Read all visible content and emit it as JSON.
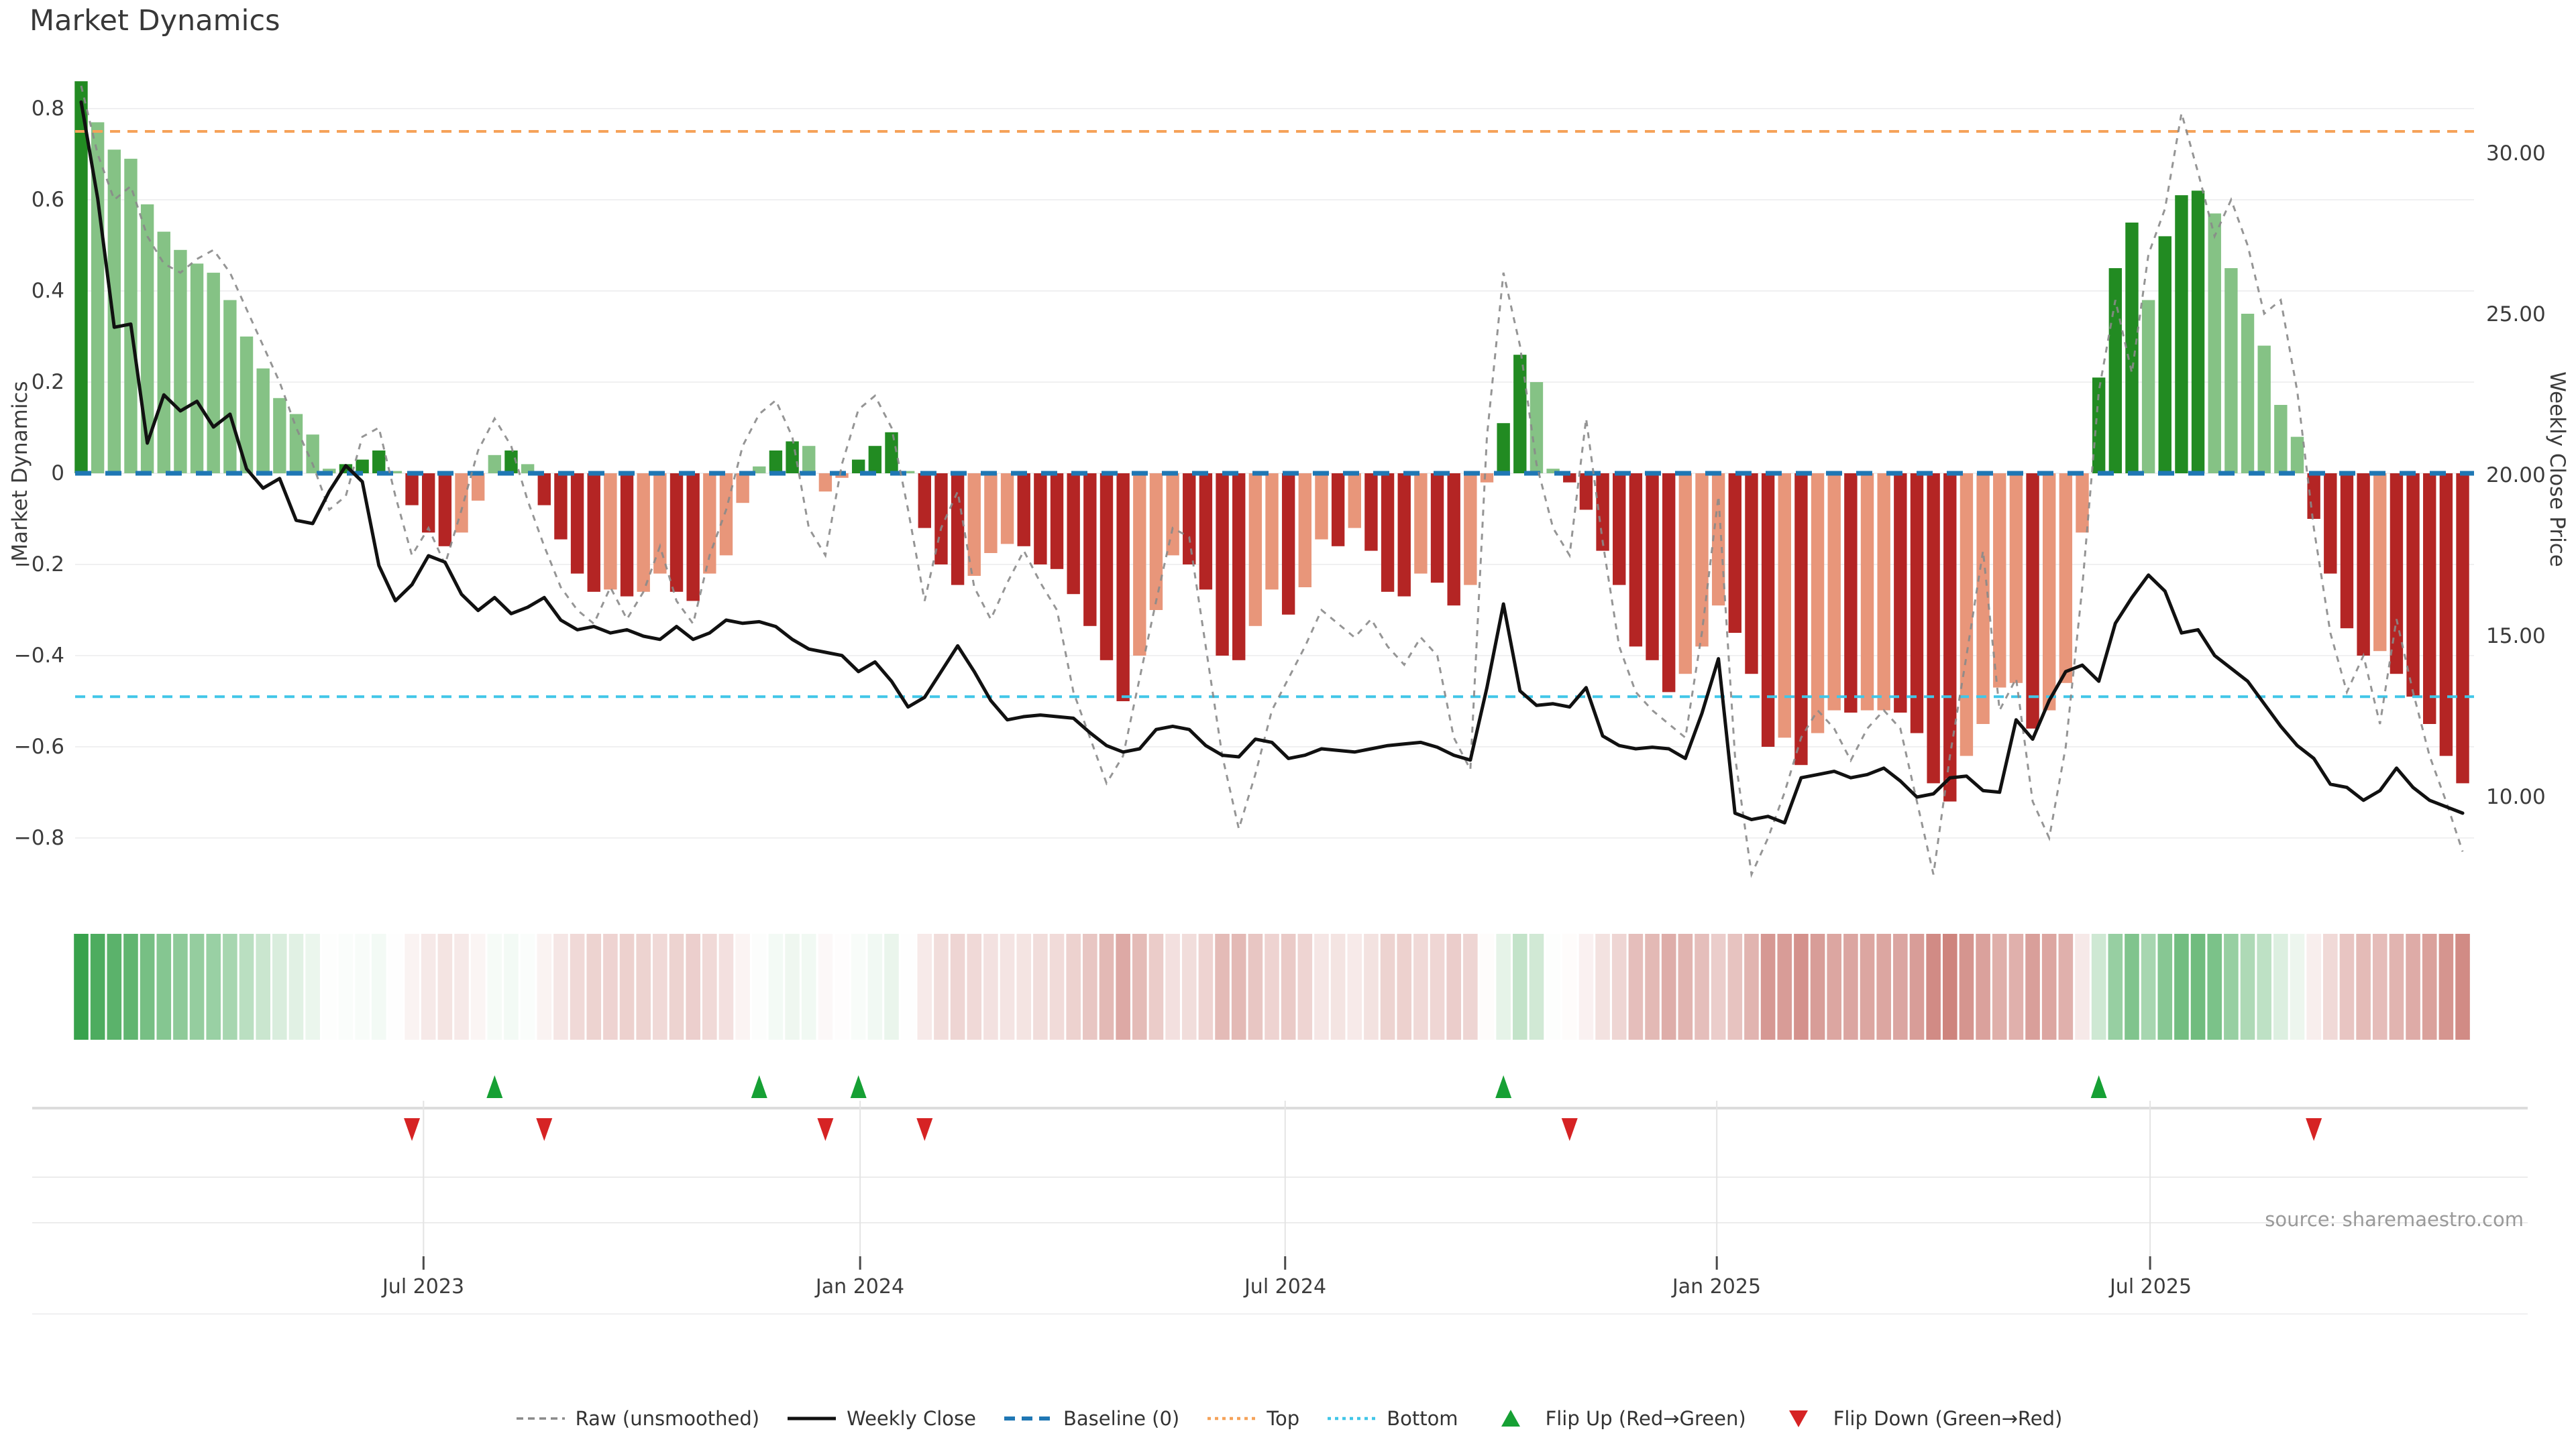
{
  "title": "Market Dynamics",
  "source": "source: sharemaestro.com",
  "left_axis": {
    "label": "Market Dynamics",
    "ticks": [
      "0.8",
      "0.6",
      "0.4",
      "0.2",
      "0",
      "−0.2",
      "−0.4",
      "−0.6",
      "−0.8"
    ]
  },
  "right_axis": {
    "label": "Weekly Close Price",
    "ticks": [
      "30.00",
      "25.00",
      "20.00",
      "15.00",
      "10.00"
    ]
  },
  "x_axis": {
    "ticks": [
      {
        "label": "Jul 2023",
        "week": 20.7
      },
      {
        "label": "Jan 2024",
        "week": 47.1
      },
      {
        "label": "Jul 2024",
        "week": 72.8
      },
      {
        "label": "Jan 2025",
        "week": 98.9
      },
      {
        "label": "Jul 2025",
        "week": 125.1
      }
    ]
  },
  "legend": [
    {
      "label": "Raw (unsmoothed)",
      "kind": "dashed-line",
      "color": "#8a8a8a"
    },
    {
      "label": "Weekly Close",
      "kind": "solid-line",
      "color": "#111111"
    },
    {
      "label": "Baseline (0)",
      "kind": "dashed-line-thick",
      "color": "#1f77b4"
    },
    {
      "label": "Top",
      "kind": "dotted-line",
      "color": "#f5a259"
    },
    {
      "label": "Bottom",
      "kind": "dotted-line",
      "color": "#41c6e8"
    },
    {
      "label": "Flip Up (Red→Green)",
      "kind": "triangle-up",
      "color": "#16a034"
    },
    {
      "label": "Flip Down (Green→Red)",
      "kind": "triangle-down",
      "color": "#d62324"
    }
  ],
  "colors": {
    "bar_pos_strong": "#228b22",
    "bar_pos_weak": "#85c285",
    "bar_neg_strong": "#b42524",
    "bar_neg_weak": "#e8967a",
    "baseline": "#1f77b4",
    "top_line": "#f5a259",
    "bottom_line": "#41c6e8",
    "raw_line": "#8a8a8a",
    "close_line": "#111111",
    "flip_up": "#16a034",
    "flip_down": "#d62324",
    "heat_pos": "#2f9e44",
    "heat_neg": "#c2655d",
    "grid": "#f0f0f1",
    "panel_line_strong": "#dcdcdc",
    "panel_line_light": "#ececec",
    "tick_mark": "#4a4a4a"
  },
  "chart_data": {
    "type": "bar",
    "description": "Weekly market-dynamics oscillator bars (left axis) with raw unsmoothed oscillator (dashed), weekly close price (solid, right axis), baseline 0, top/bottom thresholds, and regime flip markers. ~145 weekly points, Feb 2023 - Nov 2025.",
    "weeks": 145,
    "baseline": 0,
    "top": 0.75,
    "bottom": -0.49,
    "left_ylim": [
      -0.9,
      0.88
    ],
    "right_ylim": [
      7.6,
      32.6
    ],
    "flip_up_weeks": [
      25,
      41,
      47,
      86,
      122
    ],
    "flip_down_weeks": [
      20,
      28,
      45,
      51,
      90,
      135
    ],
    "dynamics": [
      0.86,
      0.77,
      0.71,
      0.69,
      0.59,
      0.53,
      0.49,
      0.46,
      0.44,
      0.38,
      0.3,
      0.23,
      0.165,
      0.13,
      0.085,
      0.01,
      0.02,
      0.03,
      0.05,
      0.005,
      -0.07,
      -0.13,
      -0.16,
      -0.13,
      -0.06,
      0.04,
      0.05,
      0.02,
      -0.07,
      -0.145,
      -0.22,
      -0.26,
      -0.255,
      -0.27,
      -0.26,
      -0.22,
      -0.26,
      -0.28,
      -0.22,
      -0.18,
      -0.065,
      0.015,
      0.05,
      0.07,
      0.06,
      -0.04,
      -0.01,
      0.03,
      0.06,
      0.09,
      0.005,
      -0.12,
      -0.2,
      -0.245,
      -0.225,
      -0.175,
      -0.155,
      -0.16,
      -0.2,
      -0.21,
      -0.265,
      -0.335,
      -0.41,
      -0.5,
      -0.4,
      -0.3,
      -0.18,
      -0.2,
      -0.255,
      -0.4,
      -0.41,
      -0.335,
      -0.255,
      -0.31,
      -0.25,
      -0.145,
      -0.16,
      -0.12,
      -0.17,
      -0.26,
      -0.27,
      -0.22,
      -0.24,
      -0.29,
      -0.245,
      -0.02,
      0.11,
      0.26,
      0.2,
      0.01,
      -0.02,
      -0.08,
      -0.17,
      -0.245,
      -0.38,
      -0.41,
      -0.48,
      -0.44,
      -0.38,
      -0.29,
      -0.35,
      -0.44,
      -0.6,
      -0.58,
      -0.64,
      -0.57,
      -0.52,
      -0.525,
      -0.52,
      -0.52,
      -0.525,
      -0.57,
      -0.68,
      -0.72,
      -0.62,
      -0.55,
      -0.47,
      -0.46,
      -0.56,
      -0.52,
      -0.46,
      -0.13,
      0.21,
      0.45,
      0.55,
      0.38,
      0.52,
      0.61,
      0.62,
      0.57,
      0.45,
      0.35,
      0.28,
      0.15,
      0.08,
      -0.1,
      -0.22,
      -0.34,
      -0.4,
      -0.39,
      -0.44,
      -0.49,
      -0.55,
      -0.62,
      -0.68
    ],
    "raw": [
      0.85,
      0.7,
      0.6,
      0.63,
      0.52,
      0.46,
      0.44,
      0.47,
      0.49,
      0.44,
      0.36,
      0.28,
      0.2,
      0.1,
      0.02,
      -0.08,
      -0.05,
      0.08,
      0.1,
      -0.05,
      -0.18,
      -0.12,
      -0.2,
      -0.08,
      0.05,
      0.12,
      0.06,
      -0.06,
      -0.16,
      -0.25,
      -0.3,
      -0.33,
      -0.25,
      -0.32,
      -0.26,
      -0.16,
      -0.28,
      -0.33,
      -0.18,
      -0.08,
      0.06,
      0.13,
      0.16,
      0.08,
      -0.12,
      -0.18,
      0.02,
      0.14,
      0.17,
      0.1,
      -0.08,
      -0.28,
      -0.12,
      -0.04,
      -0.25,
      -0.32,
      -0.24,
      -0.17,
      -0.24,
      -0.3,
      -0.48,
      -0.58,
      -0.68,
      -0.62,
      -0.45,
      -0.28,
      -0.12,
      -0.14,
      -0.38,
      -0.62,
      -0.78,
      -0.66,
      -0.52,
      -0.45,
      -0.38,
      -0.3,
      -0.33,
      -0.36,
      -0.32,
      -0.38,
      -0.42,
      -0.36,
      -0.4,
      -0.58,
      -0.65,
      0.08,
      0.44,
      0.28,
      0.02,
      -0.12,
      -0.18,
      0.12,
      -0.15,
      -0.38,
      -0.48,
      -0.52,
      -0.55,
      -0.58,
      -0.35,
      -0.05,
      -0.62,
      -0.88,
      -0.8,
      -0.7,
      -0.58,
      -0.52,
      -0.56,
      -0.63,
      -0.56,
      -0.52,
      -0.56,
      -0.72,
      -0.88,
      -0.62,
      -0.4,
      -0.17,
      -0.52,
      -0.45,
      -0.72,
      -0.8,
      -0.6,
      -0.25,
      0.18,
      0.38,
      0.22,
      0.48,
      0.58,
      0.79,
      0.66,
      0.52,
      0.6,
      0.5,
      0.35,
      0.38,
      0.18,
      -0.12,
      -0.35,
      -0.48,
      -0.4,
      -0.55,
      -0.32,
      -0.48,
      -0.62,
      -0.72,
      -0.83
    ],
    "close": [
      31.6,
      28.6,
      24.6,
      24.7,
      21.0,
      22.5,
      22.0,
      22.3,
      21.5,
      21.9,
      20.2,
      19.6,
      19.9,
      18.6,
      18.5,
      19.5,
      20.3,
      19.8,
      17.2,
      16.1,
      16.6,
      17.5,
      17.3,
      16.3,
      15.8,
      16.2,
      15.7,
      15.9,
      16.2,
      15.5,
      15.2,
      15.3,
      15.1,
      15.2,
      15.0,
      14.9,
      15.3,
      14.9,
      15.1,
      15.5,
      15.4,
      15.45,
      15.3,
      14.9,
      14.6,
      14.5,
      14.4,
      13.9,
      14.2,
      13.6,
      12.8,
      13.1,
      13.9,
      14.7,
      13.9,
      13.0,
      12.4,
      12.5,
      12.55,
      12.5,
      12.45,
      12.0,
      11.6,
      11.4,
      11.5,
      12.1,
      12.2,
      12.1,
      11.6,
      11.3,
      11.25,
      11.8,
      11.7,
      11.2,
      11.3,
      11.5,
      11.45,
      11.4,
      11.5,
      11.6,
      11.65,
      11.7,
      11.55,
      11.3,
      11.15,
      13.4,
      16.0,
      13.3,
      12.85,
      12.9,
      12.8,
      13.4,
      11.9,
      11.6,
      11.5,
      11.55,
      11.5,
      11.2,
      12.6,
      14.3,
      9.5,
      9.3,
      9.4,
      9.2,
      10.6,
      10.7,
      10.8,
      10.6,
      10.7,
      10.9,
      10.5,
      10.0,
      10.1,
      10.6,
      10.65,
      10.2,
      10.15,
      12.4,
      11.8,
      13.0,
      13.9,
      14.1,
      13.6,
      15.4,
      16.2,
      16.9,
      16.4,
      15.1,
      15.2,
      14.4,
      14.0,
      13.6,
      12.9,
      12.2,
      11.6,
      11.2,
      10.4,
      10.3,
      9.9,
      10.2,
      10.9,
      10.3,
      9.9,
      9.7,
      9.5
    ]
  }
}
